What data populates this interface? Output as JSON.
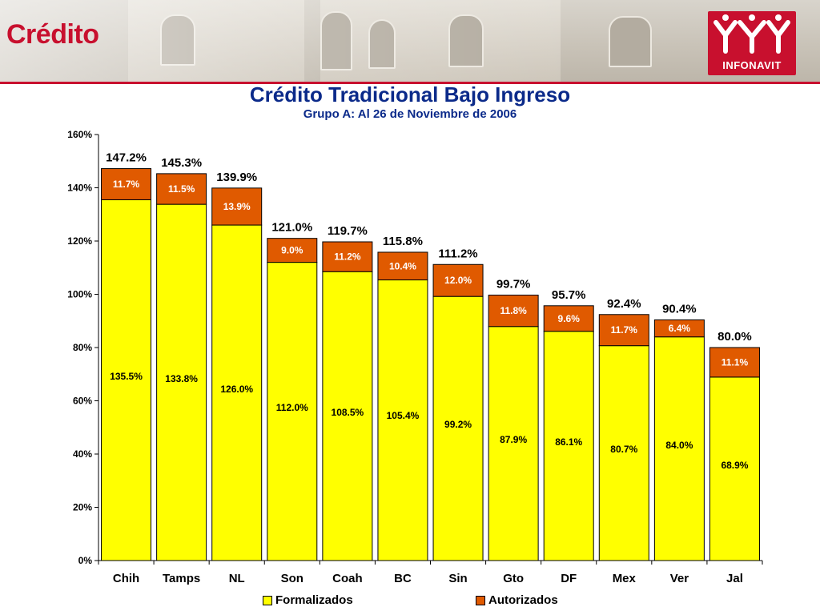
{
  "header": {
    "title": "Crédito",
    "logo_text": "INFONAVIT"
  },
  "colors": {
    "formalizados": "#ffff00",
    "autorizados": "#e05a00",
    "title": "#0b2a8a",
    "brand": "#c8102e"
  },
  "chart_data": {
    "type": "bar",
    "stacked": true,
    "title": "Crédito Tradicional Bajo Ingreso",
    "subtitle": "Grupo A: Al 26 de Noviembre de 2006",
    "categories": [
      "Chih",
      "Tamps",
      "NL",
      "Son",
      "Coah",
      "BC",
      "Sin",
      "Gto",
      "DF",
      "Mex",
      "Ver",
      "Jal"
    ],
    "series": [
      {
        "name": "Formalizados",
        "values": [
          135.5,
          133.8,
          126.0,
          112.0,
          108.5,
          105.4,
          99.2,
          87.9,
          86.1,
          80.7,
          84.0,
          68.9
        ],
        "labels": [
          "135.5%",
          "133.8%",
          "126.0%",
          "112.0%",
          "108.5%",
          "105.4%",
          "99.2%",
          "87.9%",
          "86.1%",
          "80.7%",
          "84.0%",
          "68.9%"
        ]
      },
      {
        "name": "Autorizados",
        "values": [
          11.7,
          11.5,
          13.9,
          9.0,
          11.2,
          10.4,
          12.0,
          11.8,
          9.6,
          11.7,
          6.4,
          11.1
        ],
        "labels": [
          "11.7%",
          "11.5%",
          "13.9%",
          "9.0%",
          "11.2%",
          "10.4%",
          "12.0%",
          "11.8%",
          "9.6%",
          "11.7%",
          "6.4%",
          "11.1%"
        ]
      }
    ],
    "totals": [
      147.2,
      145.3,
      139.9,
      121.0,
      119.7,
      115.8,
      111.2,
      99.7,
      95.7,
      92.4,
      90.4,
      80.0
    ],
    "total_labels": [
      "147.2%",
      "145.3%",
      "139.9%",
      "121.0%",
      "119.7%",
      "115.8%",
      "111.2%",
      "99.7%",
      "95.7%",
      "92.4%",
      "90.4%",
      "80.0%"
    ],
    "yticks": [
      0,
      20,
      40,
      60,
      80,
      100,
      120,
      140,
      160
    ],
    "ytick_labels": [
      "0%",
      "20%",
      "40%",
      "60%",
      "80%",
      "100%",
      "120%",
      "140%",
      "160%"
    ],
    "ylim": [
      0,
      160
    ],
    "grid": false,
    "legend_position": "bottom"
  }
}
